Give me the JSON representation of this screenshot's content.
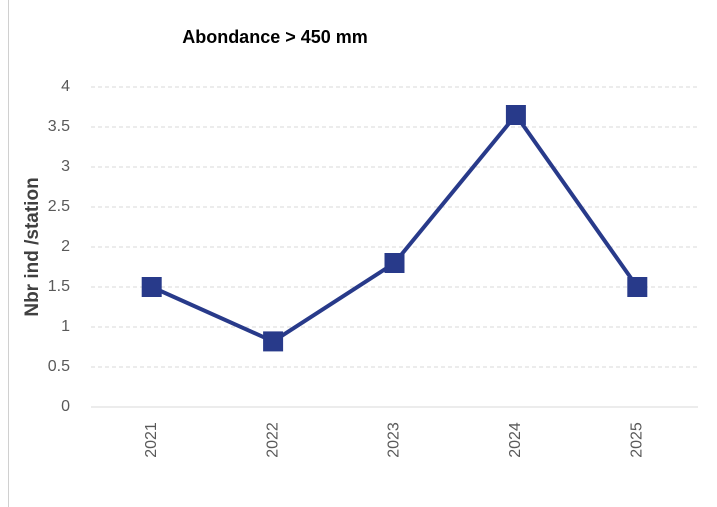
{
  "chart_data": {
    "type": "line",
    "title": "Abondance > 450 mm",
    "y_label": "Nbr ind /station",
    "categories": [
      "2021",
      "2022",
      "2023",
      "2024",
      "2025"
    ],
    "series": [
      {
        "name": "Abondance",
        "color": "#283a8a",
        "values": [
          1.5,
          0.82,
          1.8,
          3.65,
          1.5
        ]
      }
    ],
    "ylim": [
      0,
      4
    ],
    "yticks": [
      0,
      0.5,
      1,
      1.5,
      2,
      2.5,
      3,
      3.5,
      4
    ],
    "grid": true
  }
}
